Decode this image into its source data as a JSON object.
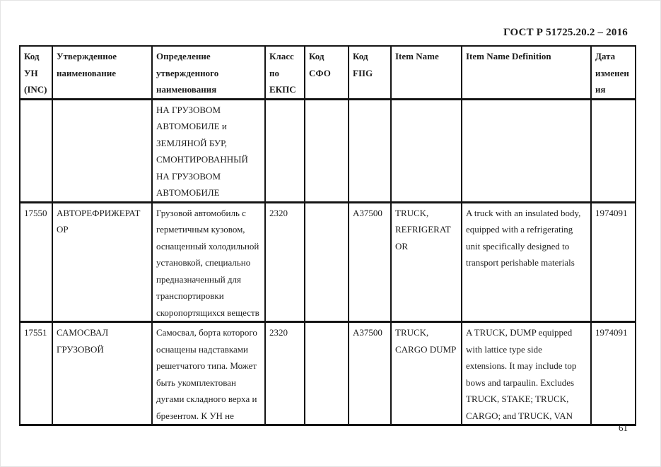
{
  "document": {
    "standard_ref": "ГОСТ Р 51725.20.2 – 2016",
    "page_number": "61"
  },
  "table": {
    "columns": [
      {
        "key": "inc_code",
        "label": "Код\nУН\n(INC)"
      },
      {
        "key": "approved_name",
        "label": "Утвержденное\nнаименование"
      },
      {
        "key": "approved_name_definition",
        "label": "Определение\nутвержденного\nнаименования"
      },
      {
        "key": "ekps_class",
        "label": "Класс\nпо\nЕКПС"
      },
      {
        "key": "sfo_code",
        "label": "Код\nСФО"
      },
      {
        "key": "fiig_code",
        "label": "Код\nFIIG"
      },
      {
        "key": "item_name",
        "label": "Item Name"
      },
      {
        "key": "item_name_definition",
        "label": "Item Name Definition"
      },
      {
        "key": "change_date",
        "label": "Дата\nизменен\nия"
      }
    ],
    "rows": [
      {
        "inc_code": "",
        "approved_name": "",
        "approved_name_definition": "НА ГРУЗОВОМ\nАВТОМОБИЛЕ и\nЗЕМЛЯНОЙ БУР,\nСМОНТИРОВАННЫЙ\nНА ГРУЗОВОМ\nАВТОМОБИЛЕ",
        "ekps_class": "",
        "sfo_code": "",
        "fiig_code": "",
        "item_name": "",
        "item_name_definition": "",
        "change_date": ""
      },
      {
        "inc_code": "17550",
        "approved_name": "АВТОРЕФРИЖЕРАТ\nОР",
        "approved_name_definition": "Грузовой автомобиль с\nгерметичным кузовом,\nоснащенный холодильной\nустановкой, специально\nпредназначенный для\nтранспортировки\nскоропортящихся веществ",
        "ekps_class": "2320",
        "sfo_code": "",
        "fiig_code": "A37500",
        "item_name": "TRUCK,\nREFRIGERAT\nOR",
        "item_name_definition": "A truck with an insulated body,\nequipped with a refrigerating\nunit specifically designed to\ntransport perishable materials",
        "change_date": "1974091"
      },
      {
        "inc_code": "17551",
        "approved_name": "САМОСВАЛ\nГРУЗОВОЙ",
        "approved_name_definition": "Самосвал, борта которого\nоснащены надставками\nрешетчатого типа. Может\nбыть укомплектован\nдугами складного верха и\nбрезентом. К УН не",
        "ekps_class": "2320",
        "sfo_code": "",
        "fiig_code": "A37500",
        "item_name": "TRUCK,\nCARGO DUMP",
        "item_name_definition": "A TRUCK, DUMP equipped\nwith lattice type side\nextensions. It may include top\nbows and tarpaulin. Excludes\nTRUCK, STAKE; TRUCK,\nCARGO; and TRUCK, VAN",
        "change_date": "1974091"
      }
    ]
  }
}
